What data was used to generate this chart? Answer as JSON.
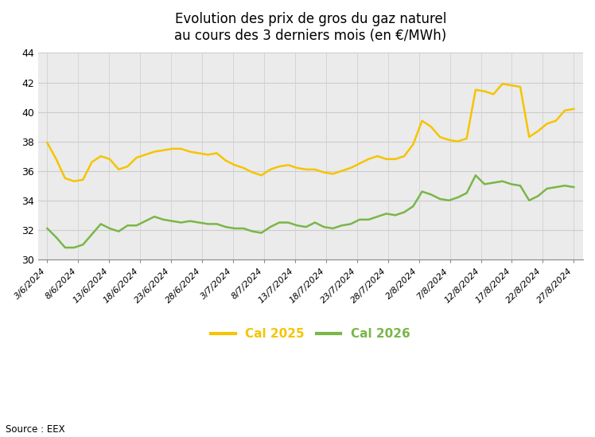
{
  "title": "Evolution des prix de gros du gaz naturel\nau cours des 3 derniers mois (en €/MWh)",
  "source": "Source : EEX",
  "legend_cal2025": "Cal 2025",
  "legend_cal2026": "Cal 2026",
  "color_cal2025": "#F5C400",
  "color_cal2026": "#7AB648",
  "background_color": "#EBEBEB",
  "grid_color": "#CCCCCC",
  "ylim": [
    30,
    44
  ],
  "yticks": [
    30,
    32,
    34,
    36,
    38,
    40,
    42,
    44
  ],
  "x_tick_labels": [
    "3/6/2024",
    "8/6/2024",
    "13/6/2024",
    "18/6/2024",
    "23/6/2024",
    "28/6/2024",
    "3/7/2024",
    "8/7/2024",
    "13/7/2024",
    "18/7/2024",
    "23/7/2024",
    "28/7/2024",
    "2/8/2024",
    "7/8/2024",
    "12/8/2024",
    "17/8/2024",
    "22/8/2024",
    "27/8/2024"
  ],
  "cal2025": [
    37.9,
    36.8,
    35.5,
    35.3,
    35.4,
    36.6,
    37.0,
    36.8,
    36.1,
    36.3,
    36.9,
    37.1,
    37.3,
    37.4,
    37.5,
    37.5,
    37.3,
    37.2,
    37.1,
    37.2,
    36.7,
    36.4,
    36.2,
    35.9,
    35.7,
    36.1,
    36.3,
    36.4,
    36.2,
    36.1,
    36.1,
    35.9,
    35.8,
    36.0,
    36.2,
    36.5,
    36.8,
    37.0,
    36.8,
    36.8,
    37.0,
    37.8,
    39.4,
    39.0,
    38.3,
    38.1,
    38.0,
    38.2,
    41.5,
    41.4,
    41.2,
    41.9,
    41.8,
    41.7,
    38.3,
    38.7,
    39.2,
    39.4,
    40.1,
    40.2
  ],
  "cal2026": [
    32.1,
    31.5,
    30.8,
    30.8,
    31.0,
    31.7,
    32.4,
    32.1,
    31.9,
    32.3,
    32.3,
    32.6,
    32.9,
    32.7,
    32.6,
    32.5,
    32.6,
    32.5,
    32.4,
    32.4,
    32.2,
    32.1,
    32.1,
    31.9,
    31.8,
    32.2,
    32.5,
    32.5,
    32.3,
    32.2,
    32.5,
    32.2,
    32.1,
    32.3,
    32.4,
    32.7,
    32.7,
    32.9,
    33.1,
    33.0,
    33.2,
    33.6,
    34.6,
    34.4,
    34.1,
    34.0,
    34.2,
    34.5,
    35.7,
    35.1,
    35.2,
    35.3,
    35.1,
    35.0,
    34.0,
    34.3,
    34.8,
    34.9,
    35.0,
    34.9
  ],
  "n_points": 60,
  "n_ticks": 18
}
